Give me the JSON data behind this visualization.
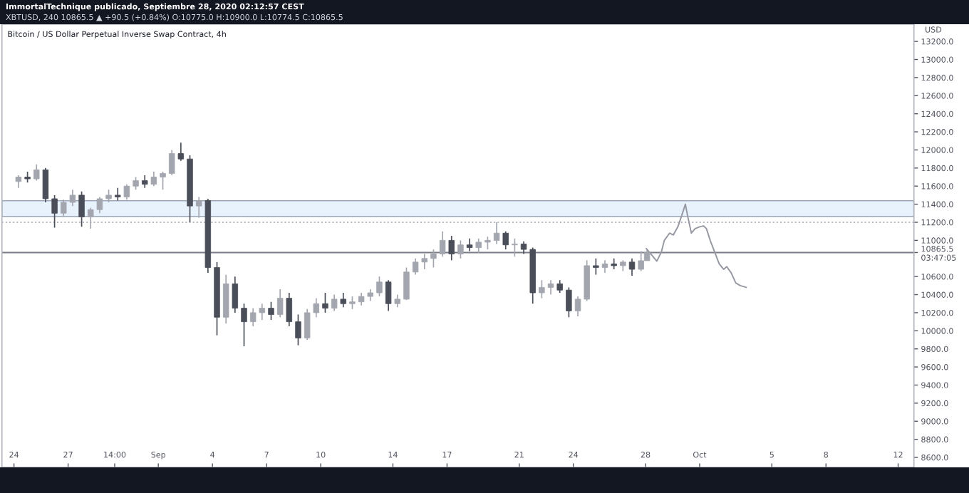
{
  "chart_data": {
    "type": "candlestick",
    "title": "ImmortalTechnique publicado, Septiembre 28, 2020 02:12:57 CEST",
    "subtitle": "XBTUSD, 240 10865.5 ▲ +90.5 (+0.84%) O:10775.0 H:10900.0 L:10774.5 C:10865.5",
    "ylabel": "USD",
    "annotations": [
      "Bitcoin / US Dollar Perpetual Inverse Swap Contract, 4h"
    ],
    "series": [
      {
        "x": [
          "2020-08-24T06:00",
          "2020-08-24T18:00",
          "2020-08-25T06:00",
          "2020-08-25T18:00",
          "2020-08-26T06:00",
          "2020-08-26T18:00",
          "2020-08-27T06:00",
          "2020-08-27T18:00",
          "2020-08-28T06:00",
          "2020-08-28T18:00",
          "2020-08-29T06:00",
          "2020-08-29T18:00",
          "2020-08-30T06:00",
          "2020-08-30T18:00",
          "2020-08-31T06:00",
          "2020-08-31T18:00",
          "2020-09-01T06:00",
          "2020-09-01T18:00",
          "2020-09-02T06:00",
          "2020-09-02T18:00",
          "2020-09-03T06:00",
          "2020-09-03T18:00",
          "2020-09-04T06:00",
          "2020-09-04T18:00",
          "2020-09-05T06:00",
          "2020-09-05T18:00",
          "2020-09-06T06:00",
          "2020-09-06T18:00",
          "2020-09-07T06:00",
          "2020-09-07T18:00",
          "2020-09-08T06:00",
          "2020-09-08T18:00",
          "2020-09-09T06:00",
          "2020-09-09T18:00",
          "2020-09-10T06:00",
          "2020-09-10T18:00",
          "2020-09-11T06:00",
          "2020-09-11T18:00",
          "2020-09-12T06:00",
          "2020-09-12T18:00",
          "2020-09-13T06:00",
          "2020-09-13T18:00",
          "2020-09-14T06:00",
          "2020-09-14T18:00",
          "2020-09-15T06:00",
          "2020-09-15T18:00",
          "2020-09-16T06:00",
          "2020-09-16T18:00",
          "2020-09-17T06:00",
          "2020-09-17T18:00",
          "2020-09-18T06:00",
          "2020-09-18T18:00",
          "2020-09-19T06:00",
          "2020-09-19T18:00",
          "2020-09-20T06:00",
          "2020-09-20T18:00",
          "2020-09-21T06:00",
          "2020-09-21T18:00",
          "2020-09-22T06:00",
          "2020-09-22T18:00",
          "2020-09-23T06:00",
          "2020-09-23T18:00",
          "2020-09-24T06:00",
          "2020-09-24T18:00",
          "2020-09-25T06:00",
          "2020-09-25T18:00",
          "2020-09-26T06:00",
          "2020-09-26T18:00",
          "2020-09-27T06:00",
          "2020-09-27T18:00",
          "2020-09-28T02:00"
        ],
        "ohlc": [
          [
            11650,
            11720,
            11580,
            11700
          ],
          [
            11700,
            11760,
            11640,
            11680
          ],
          [
            11680,
            11840,
            11660,
            11780
          ],
          [
            11780,
            11800,
            11420,
            11460
          ],
          [
            11460,
            11500,
            11140,
            11300
          ],
          [
            11300,
            11450,
            11260,
            11420
          ],
          [
            11420,
            11560,
            11380,
            11500
          ],
          [
            11500,
            11540,
            11150,
            11260
          ],
          [
            11260,
            11360,
            11130,
            11340
          ],
          [
            11340,
            11480,
            11300,
            11460
          ],
          [
            11460,
            11560,
            11420,
            11500
          ],
          [
            11500,
            11580,
            11440,
            11480
          ],
          [
            11480,
            11620,
            11450,
            11600
          ],
          [
            11600,
            11700,
            11560,
            11660
          ],
          [
            11660,
            11720,
            11580,
            11620
          ],
          [
            11620,
            11760,
            11600,
            11700
          ],
          [
            11700,
            11760,
            11560,
            11740
          ],
          [
            11740,
            12000,
            11720,
            11960
          ],
          [
            11960,
            12080,
            11880,
            11900
          ],
          [
            11900,
            11940,
            11200,
            11380
          ],
          [
            11380,
            11480,
            11250,
            11440
          ],
          [
            11440,
            11460,
            10640,
            10700
          ],
          [
            10700,
            10760,
            9950,
            10150
          ],
          [
            10150,
            10620,
            10080,
            10520
          ],
          [
            10520,
            10600,
            10200,
            10250
          ],
          [
            10250,
            10300,
            9830,
            10100
          ],
          [
            10100,
            10250,
            10050,
            10200
          ],
          [
            10200,
            10300,
            10120,
            10250
          ],
          [
            10250,
            10320,
            10120,
            10180
          ],
          [
            10180,
            10460,
            10150,
            10360
          ],
          [
            10360,
            10420,
            10050,
            10100
          ],
          [
            10100,
            10180,
            9840,
            9920
          ],
          [
            9920,
            10240,
            9900,
            10200
          ],
          [
            10200,
            10360,
            10150,
            10300
          ],
          [
            10300,
            10420,
            10200,
            10250
          ],
          [
            10250,
            10400,
            10220,
            10350
          ],
          [
            10350,
            10420,
            10260,
            10300
          ],
          [
            10300,
            10380,
            10240,
            10320
          ],
          [
            10320,
            10420,
            10280,
            10380
          ],
          [
            10380,
            10460,
            10330,
            10420
          ],
          [
            10420,
            10600,
            10380,
            10540
          ],
          [
            10540,
            10560,
            10220,
            10300
          ],
          [
            10300,
            10400,
            10260,
            10350
          ],
          [
            10350,
            10700,
            10340,
            10650
          ],
          [
            10650,
            10800,
            10620,
            10760
          ],
          [
            10760,
            10850,
            10680,
            10800
          ],
          [
            10800,
            10900,
            10700,
            10850
          ],
          [
            10850,
            11100,
            10820,
            11000
          ],
          [
            11000,
            11050,
            10780,
            10850
          ],
          [
            10850,
            11000,
            10800,
            10950
          ],
          [
            10950,
            11020,
            10880,
            10920
          ],
          [
            10920,
            11020,
            10860,
            10980
          ],
          [
            10980,
            11040,
            10900,
            11000
          ],
          [
            11000,
            11200,
            10960,
            11080
          ],
          [
            11080,
            11100,
            10900,
            10950
          ],
          [
            10950,
            11020,
            10820,
            10960
          ],
          [
            10960,
            10990,
            10850,
            10900
          ],
          [
            10900,
            10920,
            10300,
            10420
          ],
          [
            10420,
            10560,
            10360,
            10480
          ],
          [
            10480,
            10560,
            10400,
            10520
          ],
          [
            10520,
            10560,
            10420,
            10450
          ],
          [
            10450,
            10480,
            10150,
            10220
          ],
          [
            10220,
            10380,
            10160,
            10350
          ],
          [
            10350,
            10780,
            10330,
            10720
          ],
          [
            10720,
            10800,
            10620,
            10700
          ],
          [
            10700,
            10780,
            10640,
            10740
          ],
          [
            10740,
            10800,
            10680,
            10720
          ],
          [
            10720,
            10780,
            10660,
            10760
          ],
          [
            10760,
            10800,
            10610,
            10680
          ],
          [
            10680,
            10880,
            10660,
            10775
          ],
          [
            10775,
            10900,
            10774.5,
            10865.5
          ]
        ],
        "colors": [
          "#a3a6af",
          "#4a4e59",
          "#a3a6af",
          "#4a4e59",
          "#4a4e59",
          "#a3a6af",
          "#a3a6af",
          "#4a4e59",
          "#a3a6af",
          "#a3a6af",
          "#a3a6af",
          "#4a4e59",
          "#a3a6af",
          "#a3a6af",
          "#4a4e59",
          "#a3a6af",
          "#a3a6af",
          "#a3a6af",
          "#4a4e59",
          "#4a4e59",
          "#a3a6af",
          "#4a4e59",
          "#4a4e59",
          "#a3a6af",
          "#4a4e59",
          "#4a4e59",
          "#a3a6af",
          "#a3a6af",
          "#4a4e59",
          "#a3a6af",
          "#4a4e59",
          "#4a4e59",
          "#a3a6af",
          "#a3a6af",
          "#4a4e59",
          "#a3a6af",
          "#4a4e59",
          "#a3a6af",
          "#a3a6af",
          "#a3a6af",
          "#a3a6af",
          "#4a4e59",
          "#a3a6af",
          "#a3a6af",
          "#a3a6af",
          "#a3a6af",
          "#a3a6af",
          "#a3a6af",
          "#4a4e59",
          "#a3a6af",
          "#4a4e59",
          "#a3a6af",
          "#a3a6af",
          "#a3a6af",
          "#4a4e59",
          "#a3a6af",
          "#4a4e59",
          "#4a4e59",
          "#a3a6af",
          "#a3a6af",
          "#4a4e59",
          "#4a4e59",
          "#a3a6af",
          "#a3a6af",
          "#4a4e59",
          "#a3a6af",
          "#4a4e59",
          "#a3a6af",
          "#4a4e59",
          "#a3a6af",
          "#a3a6af"
        ]
      },
      {
        "type": "line",
        "color": "#9598a1",
        "x": [
          "2020-09-28T01:00",
          "2020-09-28T09:00",
          "2020-09-28T15:00",
          "2020-09-28T21:00",
          "2020-09-29T01:00",
          "2020-09-29T08:00",
          "2020-09-29T13:00",
          "2020-09-29T19:00",
          "2020-09-30T00:00",
          "2020-09-30T05:00",
          "2020-09-30T08:00",
          "2020-09-30T13:00",
          "2020-09-30T18:00",
          "2020-10-01T00:00",
          "2020-10-01T05:00",
          "2020-10-01T09:00",
          "2020-10-01T14:00",
          "2020-10-01T20:00",
          "2020-10-02T02:00",
          "2020-10-02T08:00",
          "2020-10-02T12:00",
          "2020-10-02T18:00",
          "2020-10-03T00:00",
          "2020-10-03T06:00",
          "2020-10-03T14:00"
        ],
        "values": [
          10910,
          10830,
          10770,
          10870,
          11000,
          11080,
          11060,
          11150,
          11270,
          11400,
          11270,
          11080,
          11130,
          11150,
          11160,
          11130,
          11000,
          10870,
          10740,
          10680,
          10710,
          10640,
          10530,
          10500,
          10480
        ]
      }
    ],
    "xlim": [
      "2020-08-23T08:00",
      "2020-10-12T21:00"
    ],
    "xticks": [
      {
        "value": "2020-08-24",
        "label": "24"
      },
      {
        "value": "2020-08-27",
        "label": "27"
      },
      {
        "value": "2020-08-29T14:00",
        "label": "14:00"
      },
      {
        "value": "2020-09-01",
        "label": "Sep"
      },
      {
        "value": "2020-09-04",
        "label": "4"
      },
      {
        "value": "2020-09-07",
        "label": "7"
      },
      {
        "value": "2020-09-10",
        "label": "10"
      },
      {
        "value": "2020-09-14",
        "label": "14"
      },
      {
        "value": "2020-09-17",
        "label": "17"
      },
      {
        "value": "2020-09-21",
        "label": "21"
      },
      {
        "value": "2020-09-24",
        "label": "24"
      },
      {
        "value": "2020-09-28",
        "label": "28"
      },
      {
        "value": "2020-10-01",
        "label": "Oct"
      },
      {
        "value": "2020-10-05",
        "label": "5"
      },
      {
        "value": "2020-10-08",
        "label": "8"
      },
      {
        "value": "2020-10-12",
        "label": "12"
      }
    ],
    "ylim": [
      8490,
      13390
    ],
    "yticks": [
      {
        "value": 8600,
        "label": "8600.0"
      },
      {
        "value": 8800,
        "label": "8800.0"
      },
      {
        "value": 9000,
        "label": "9000.0"
      },
      {
        "value": 9200,
        "label": "9200.0"
      },
      {
        "value": 9400,
        "label": "9400.0"
      },
      {
        "value": 9600,
        "label": "9600.0"
      },
      {
        "value": 9800,
        "label": "9800.0"
      },
      {
        "value": 10000,
        "label": "10000.0"
      },
      {
        "value": 10200,
        "label": "10200.0"
      },
      {
        "value": 10400,
        "label": "10400.0"
      },
      {
        "value": 10600,
        "label": "10600.0"
      },
      {
        "value": 10865.5,
        "label": "10865.5\n03:47:05"
      },
      {
        "value": 11000,
        "label": "11000.0"
      },
      {
        "value": 11200,
        "label": "11200.0"
      },
      {
        "value": 11400,
        "label": "11400.0"
      },
      {
        "value": 11600,
        "label": "11600.0"
      },
      {
        "value": 11800,
        "label": "11800.0"
      },
      {
        "value": 12000,
        "label": "12000.0"
      },
      {
        "value": 12200,
        "label": "12200.0"
      },
      {
        "value": 12400,
        "label": "12400.0"
      },
      {
        "value": 12600,
        "label": "12600.0"
      },
      {
        "value": 12800,
        "label": "12800.0"
      },
      {
        "value": 13000,
        "label": "13000.0"
      },
      {
        "value": 13200,
        "label": "13200.0"
      }
    ],
    "ref_lines": [
      {
        "axis": "y",
        "value": 10865,
        "color": "#787b86",
        "line_style": "solid"
      },
      {
        "axis": "y",
        "value": 11200,
        "color": "#b2b5be",
        "line_style": "dotted"
      }
    ],
    "bands": [
      {
        "axis": "y",
        "from": 11265,
        "to": 11438,
        "color": "#e8f2fc"
      }
    ]
  }
}
